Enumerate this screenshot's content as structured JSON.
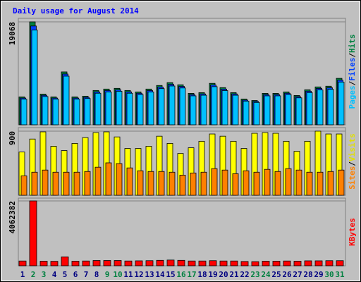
{
  "title": "Daily usage for August 2014",
  "legend_separator": "/",
  "categories": [
    "1",
    "2",
    "3",
    "4",
    "5",
    "6",
    "7",
    "8",
    "9",
    "10",
    "11",
    "12",
    "13",
    "14",
    "15",
    "16",
    "17",
    "18",
    "19",
    "20",
    "21",
    "22",
    "23",
    "24",
    "25",
    "26",
    "27",
    "28",
    "29",
    "30",
    "31"
  ],
  "category_colors": [
    "#000080",
    "#008040",
    "#008040",
    "#000080",
    "#000080",
    "#000080",
    "#000080",
    "#000080",
    "#008040",
    "#008040",
    "#000080",
    "#000080",
    "#000080",
    "#000080",
    "#000080",
    "#008040",
    "#008040",
    "#000080",
    "#000080",
    "#000080",
    "#000080",
    "#000080",
    "#008040",
    "#008040",
    "#000080",
    "#000080",
    "#000080",
    "#000080",
    "#000080",
    "#008040",
    "#008040"
  ],
  "chart_data": [
    {
      "type": "bar",
      "ylim": [
        0,
        19068
      ],
      "yticks": [
        19068
      ],
      "series": [
        {
          "name": "Hits",
          "color": "#008040",
          "values": [
            5164,
            19068,
            5693,
            5164,
            9798,
            5164,
            5296,
            6355,
            6620,
            6752,
            6355,
            6090,
            6620,
            7282,
            7812,
            7414,
            5826,
            5958,
            7679,
            6885,
            5958,
            4766,
            4502,
            5826,
            5826,
            6090,
            5428,
            6488,
            7017,
            7150,
            8606
          ]
        },
        {
          "name": "Files",
          "color": "#0040FF",
          "values": [
            4957,
            18305,
            5465,
            4957,
            9406,
            4957,
            5084,
            6101,
            6355,
            6482,
            6101,
            5846,
            6355,
            6991,
            7500,
            7117,
            5593,
            5720,
            7372,
            6610,
            5720,
            4575,
            4322,
            5593,
            5593,
            5846,
            5211,
            6228,
            6736,
            6864,
            8262
          ]
        },
        {
          "name": "Pages",
          "color": "#00C0FF",
          "values": [
            4751,
            17543,
            5238,
            4751,
            9014,
            4751,
            4872,
            5847,
            6090,
            6212,
            5847,
            5603,
            6090,
            6699,
            7187,
            6821,
            5360,
            5481,
            7065,
            6334,
            5481,
            4385,
            4142,
            5360,
            5360,
            5603,
            4994,
            5969,
            6456,
            6578,
            7918
          ]
        }
      ]
    },
    {
      "type": "bar",
      "ylim": [
        0,
        900
      ],
      "yticks": [
        900
      ],
      "series": [
        {
          "name": "Visits",
          "color": "#FFFF00",
          "values": [
            607,
            789,
            890,
            688,
            627,
            728,
            809,
            880,
            890,
            819,
            657,
            657,
            688,
            829,
            728,
            587,
            667,
            758,
            860,
            829,
            758,
            657,
            870,
            880,
            870,
            758,
            617,
            758,
            900,
            860,
            860
          ]
        },
        {
          "name": "Sites",
          "color": "#FF8000",
          "values": [
            273,
            324,
            354,
            324,
            324,
            324,
            334,
            394,
            455,
            445,
            384,
            344,
            334,
            334,
            324,
            283,
            313,
            324,
            374,
            354,
            303,
            344,
            324,
            364,
            334,
            374,
            354,
            324,
            324,
            334,
            354
          ]
        }
      ]
    },
    {
      "type": "bar",
      "ylim": [
        0,
        4062382
      ],
      "yticks": [
        4062382
      ],
      "series": [
        {
          "name": "KBytes",
          "color": "#FF0000",
          "values": [
            300000,
            4062382,
            290000,
            280000,
            560000,
            290000,
            300000,
            330000,
            330000,
            330000,
            300000,
            310000,
            320000,
            340000,
            360000,
            340000,
            300000,
            300000,
            320000,
            300000,
            300000,
            270000,
            260000,
            290000,
            290000,
            300000,
            290000,
            310000,
            310000,
            320000,
            320000
          ]
        }
      ]
    }
  ]
}
